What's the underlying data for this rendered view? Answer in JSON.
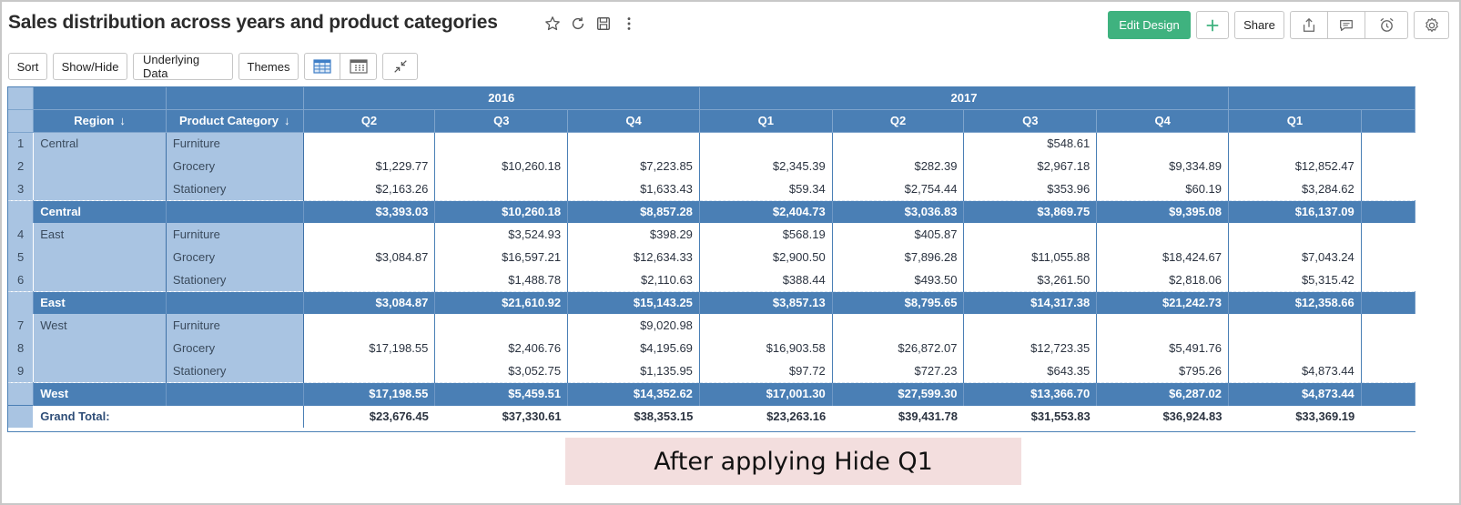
{
  "title": "Sales distribution across years and product categories",
  "header_actions": {
    "edit_design": "Edit Design",
    "share": "Share",
    "accent_color": "#3fb27f"
  },
  "toolbar": {
    "sort": "Sort",
    "show_hide": "Show/Hide",
    "underlying_data": "Underlying Data",
    "themes": "Themes"
  },
  "table": {
    "years": [
      {
        "label": "2016"
      },
      {
        "label": "2017"
      }
    ],
    "dim_headers": {
      "region": "Region",
      "product_category": "Product Category"
    },
    "quarters": [
      "Q2",
      "Q3",
      "Q4",
      "Q1",
      "Q2",
      "Q3",
      "Q4",
      "Q1"
    ],
    "rows": [
      {
        "num": "1",
        "region": "Central",
        "category": "Furniture",
        "values": [
          "",
          "",
          "",
          "",
          "",
          "$548.61",
          "",
          ""
        ]
      },
      {
        "num": "2",
        "region": "",
        "category": "Grocery",
        "values": [
          "$1,229.77",
          "$10,260.18",
          "$7,223.85",
          "$2,345.39",
          "$282.39",
          "$2,967.18",
          "$9,334.89",
          "$12,852.47"
        ]
      },
      {
        "num": "3",
        "region": "",
        "category": "Stationery",
        "values": [
          "$2,163.26",
          "",
          "$1,633.43",
          "$59.34",
          "$2,754.44",
          "$353.96",
          "$60.19",
          "$3,284.62"
        ]
      },
      {
        "subtotal": true,
        "region": "Central",
        "values": [
          "$3,393.03",
          "$10,260.18",
          "$8,857.28",
          "$2,404.73",
          "$3,036.83",
          "$3,869.75",
          "$9,395.08",
          "$16,137.09"
        ]
      },
      {
        "num": "4",
        "region": "East",
        "category": "Furniture",
        "values": [
          "",
          "$3,524.93",
          "$398.29",
          "$568.19",
          "$405.87",
          "",
          "",
          ""
        ]
      },
      {
        "num": "5",
        "region": "",
        "category": "Grocery",
        "values": [
          "$3,084.87",
          "$16,597.21",
          "$12,634.33",
          "$2,900.50",
          "$7,896.28",
          "$11,055.88",
          "$18,424.67",
          "$7,043.24"
        ]
      },
      {
        "num": "6",
        "region": "",
        "category": "Stationery",
        "values": [
          "",
          "$1,488.78",
          "$2,110.63",
          "$388.44",
          "$493.50",
          "$3,261.50",
          "$2,818.06",
          "$5,315.42"
        ]
      },
      {
        "subtotal": true,
        "region": "East",
        "values": [
          "$3,084.87",
          "$21,610.92",
          "$15,143.25",
          "$3,857.13",
          "$8,795.65",
          "$14,317.38",
          "$21,242.73",
          "$12,358.66"
        ]
      },
      {
        "num": "7",
        "region": "West",
        "category": "Furniture",
        "values": [
          "",
          "",
          "$9,020.98",
          "",
          "",
          "",
          "",
          ""
        ]
      },
      {
        "num": "8",
        "region": "",
        "category": "Grocery",
        "values": [
          "$17,198.55",
          "$2,406.76",
          "$4,195.69",
          "$16,903.58",
          "$26,872.07",
          "$12,723.35",
          "$5,491.76",
          ""
        ]
      },
      {
        "num": "9",
        "region": "",
        "category": "Stationery",
        "values": [
          "",
          "$3,052.75",
          "$1,135.95",
          "$97.72",
          "$727.23",
          "$643.35",
          "$795.26",
          "$4,873.44"
        ]
      },
      {
        "subtotal": true,
        "region": "West",
        "values": [
          "$17,198.55",
          "$5,459.51",
          "$14,352.62",
          "$17,001.30",
          "$27,599.30",
          "$13,366.70",
          "$6,287.02",
          "$4,873.44"
        ]
      }
    ],
    "grand_total": {
      "label": "Grand Total:",
      "values": [
        "$23,676.45",
        "$37,330.61",
        "$38,353.15",
        "$23,263.16",
        "$39,431.78",
        "$31,553.83",
        "$36,924.83",
        "$33,369.19"
      ]
    },
    "header_color": "#4a7fb5",
    "dim_color": "#a9c4e2"
  },
  "caption": "After applying Hide Q1"
}
